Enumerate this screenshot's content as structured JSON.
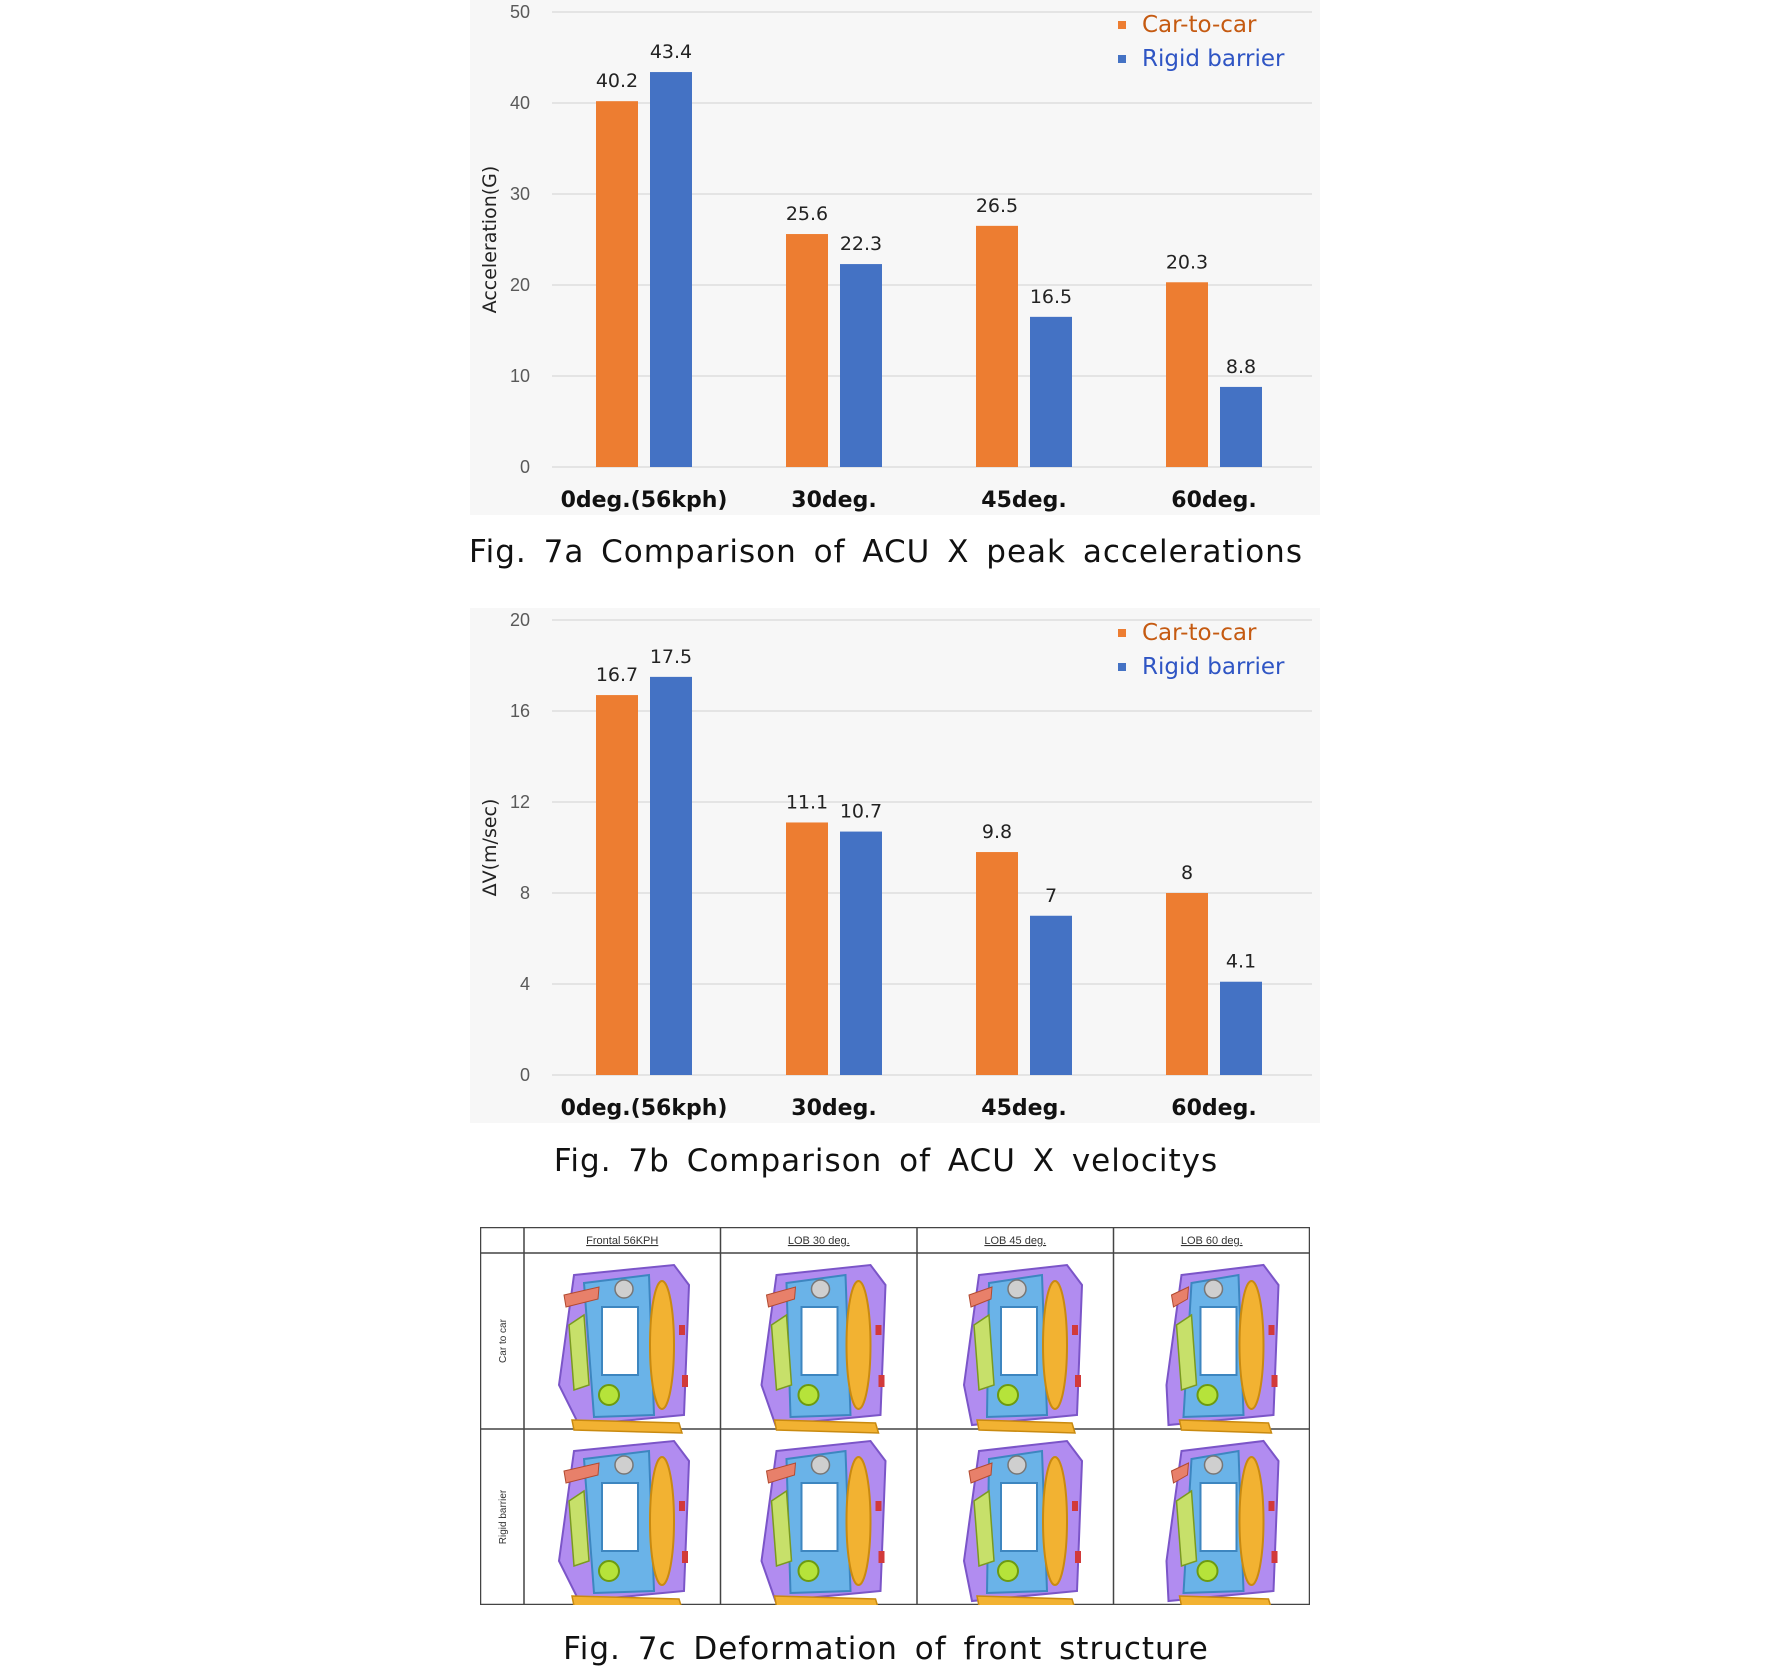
{
  "colors": {
    "car_to_car": "#ED7D31",
    "rigid_barrier": "#4472C4",
    "car_to_car_text": "#C55A11",
    "rigid_barrier_text": "#2F55C4",
    "grid": "#d9d9d9",
    "axis_text": "#595959"
  },
  "chart_data": [
    {
      "type": "bar",
      "title": "",
      "xlabel": "",
      "ylabel": "Acceleration(G)",
      "categories": [
        "0deg.(56kph)",
        "30deg.",
        "45deg.",
        "60deg."
      ],
      "ylim": [
        0,
        50
      ],
      "yticks": [
        0,
        10,
        20,
        30,
        40,
        50
      ],
      "legend": "top-right",
      "grid": true,
      "series": [
        {
          "name": "Car-to-car",
          "values": [
            40.2,
            25.6,
            26.5,
            20.3
          ]
        },
        {
          "name": "Rigid barrier",
          "values": [
            43.4,
            22.3,
            16.5,
            8.8
          ]
        }
      ]
    },
    {
      "type": "bar",
      "title": "",
      "xlabel": "",
      "ylabel": "ΔV(m/sec)",
      "categories": [
        "0deg.(56kph)",
        "30deg.",
        "45deg.",
        "60deg."
      ],
      "ylim": [
        0,
        20
      ],
      "yticks": [
        0,
        4,
        8,
        12,
        16,
        20
      ],
      "legend": "top-right",
      "grid": true,
      "series": [
        {
          "name": "Car-to-car",
          "values": [
            16.7,
            11.1,
            9.8,
            8
          ]
        },
        {
          "name": "Rigid barrier",
          "values": [
            17.5,
            10.7,
            7,
            4.1
          ]
        }
      ]
    }
  ],
  "captions": {
    "fig7a": "Fig. 7a Comparison of ACU X peak accelerations",
    "fig7b": "Fig. 7b Comparison of ACU X velocitys",
    "fig7c": "Fig. 7c Deformation of front structure"
  },
  "figure_c": {
    "columns": [
      "Frontal 56KPH",
      "LOB 30 deg.",
      "LOB 45 deg.",
      "LOB 60 deg."
    ],
    "rows": [
      "Car to car",
      "Rigid barrier"
    ]
  }
}
